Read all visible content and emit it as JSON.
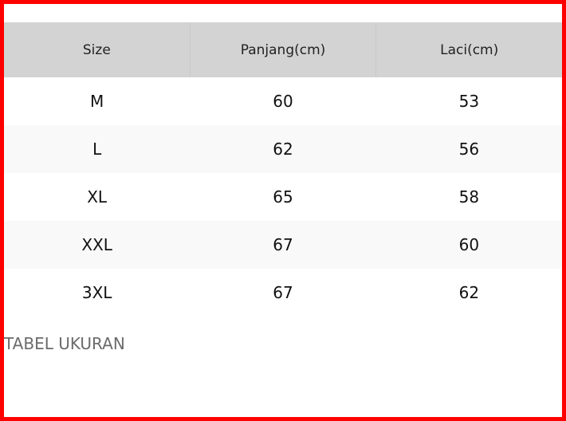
{
  "table": {
    "headers": [
      "Size",
      "Panjang(cm)",
      "Laci(cm)"
    ],
    "rows": [
      [
        "M",
        "60",
        "53"
      ],
      [
        "L",
        "62",
        "56"
      ],
      [
        "XL",
        "65",
        "58"
      ],
      [
        "XXL",
        "67",
        "60"
      ],
      [
        "3XL",
        "67",
        "62"
      ]
    ]
  },
  "caption": "TABEL UKURAN",
  "colors": {
    "border": "#ff0000",
    "header_bg": "#d3d3d3",
    "alt_row_bg": "#f9f9f9",
    "caption": "#6b6b6b"
  }
}
